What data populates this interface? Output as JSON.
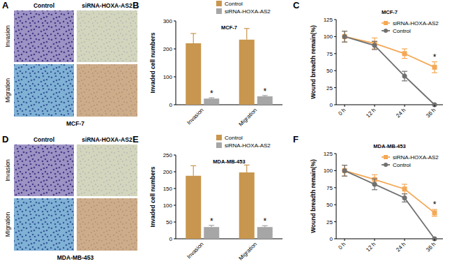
{
  "chart_data": [
    {
      "type": "bar",
      "panel_label": "B",
      "title": "MCF-7",
      "y_label": "Invaded cell numbers",
      "categories": [
        "Invasion",
        "Migration"
      ],
      "series": [
        {
          "name": "Control",
          "color": "#c8964e",
          "values": [
            220,
            233
          ],
          "errors": [
            35,
            40
          ]
        },
        {
          "name": "siRNA-HOXA-AS2",
          "color": "#a6a6a6",
          "values": [
            22,
            30
          ],
          "errors": [
            3,
            3
          ],
          "significance": [
            "*",
            "*"
          ]
        }
      ],
      "ylim": [
        0,
        300
      ],
      "yticks": [
        0,
        100,
        200,
        300
      ],
      "legend": "top-right"
    },
    {
      "type": "line",
      "panel_label": "C",
      "title": "MCF-7",
      "y_label": "Wound breadth remain(%)",
      "categories": [
        "0 h",
        "12 h",
        "24 h",
        "36 h"
      ],
      "series": [
        {
          "name": "siRNA-HOXA-AS2",
          "color": "#f5a855",
          "marker": "square",
          "values": [
            100,
            90,
            75,
            55
          ],
          "errors": [
            8,
            8,
            7,
            8
          ],
          "significance": [
            null,
            null,
            null,
            "*"
          ]
        },
        {
          "name": "Control",
          "color": "#707070",
          "marker": "circle",
          "values": [
            100,
            87,
            42,
            0
          ],
          "errors": [
            8,
            6,
            7,
            0
          ]
        }
      ],
      "ylim": [
        0,
        125
      ],
      "yticks": [
        0,
        25,
        50,
        75,
        100,
        125
      ],
      "legend": "top-right"
    },
    {
      "type": "bar",
      "panel_label": "E",
      "title": "MDA-MB-453",
      "y_label": "Invaded cell numbers",
      "categories": [
        "Invasion",
        "Migration"
      ],
      "series": [
        {
          "name": "Control",
          "color": "#c8964e",
          "values": [
            188,
            198
          ],
          "errors": [
            30,
            22
          ]
        },
        {
          "name": "siRNA-HOXA-AS2",
          "color": "#a6a6a6",
          "values": [
            35,
            35
          ],
          "errors": [
            5,
            4
          ],
          "significance": [
            "*",
            "*"
          ]
        }
      ],
      "ylim": [
        0,
        250
      ],
      "yticks": [
        0,
        50,
        100,
        150,
        200,
        250
      ],
      "legend": "top-right"
    },
    {
      "type": "line",
      "panel_label": "F",
      "title": "MDA-MB-453",
      "y_label": "Wound breadth remain(%)",
      "categories": [
        "0 h",
        "12 h",
        "24 h",
        "36 h"
      ],
      "series": [
        {
          "name": "siRNA-HOXA-AS2",
          "color": "#f5a855",
          "marker": "square",
          "values": [
            100,
            87,
            73,
            38
          ],
          "errors": [
            8,
            7,
            7,
            5
          ],
          "significance": [
            null,
            null,
            null,
            "*"
          ]
        },
        {
          "name": "Control",
          "color": "#707070",
          "marker": "circle",
          "values": [
            100,
            80,
            60,
            0
          ],
          "errors": [
            8,
            8,
            6,
            0
          ]
        }
      ],
      "ylim": [
        0,
        125
      ],
      "yticks": [
        0,
        25,
        50,
        75,
        100,
        125
      ],
      "legend": "top-right"
    }
  ],
  "image_panels": [
    {
      "panel_label": "A",
      "columns": [
        "Control",
        "siRNA-HOXA-AS2"
      ],
      "rows": [
        "Invasion",
        "Migration"
      ],
      "caption": "MCF-7"
    },
    {
      "panel_label": "D",
      "columns": [
        "Control",
        "siRNA-HOXA-AS2"
      ],
      "rows": [
        "Invasion",
        "MIgration"
      ],
      "caption": "MDA-MB-453"
    }
  ]
}
